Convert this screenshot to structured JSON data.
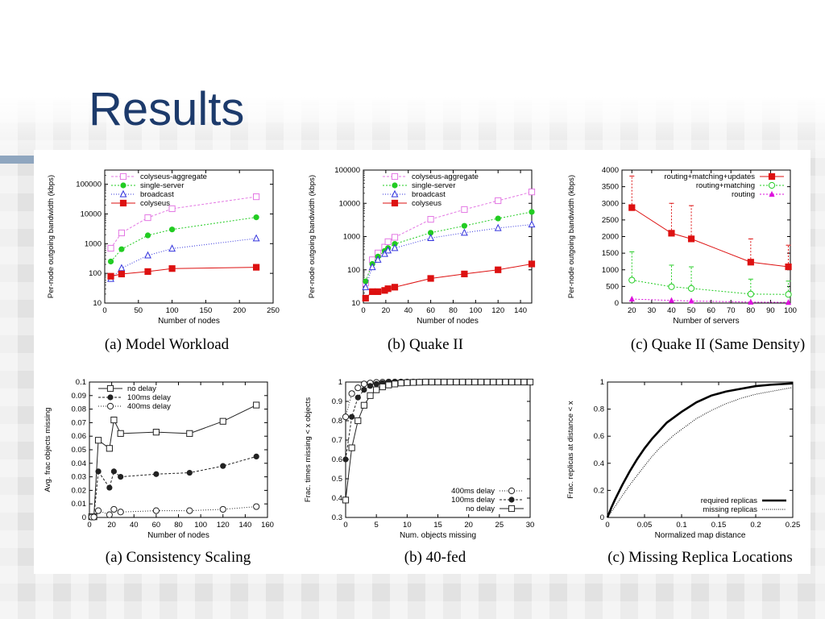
{
  "slide": {
    "title": "Results"
  },
  "chart_data": [
    {
      "id": "a_top",
      "type": "line",
      "caption": "(a) Model Workload",
      "xlabel": "Number of nodes",
      "ylabel": "Per-node outgoing bandwidth (kbps)",
      "yscale": "log",
      "xlim": [
        0,
        250
      ],
      "ylim": [
        10,
        300000
      ],
      "xticks": [
        0,
        50,
        100,
        150,
        200,
        250
      ],
      "yticks": [
        10,
        100,
        1000,
        10000,
        100000
      ],
      "ytick_labels": [
        "10",
        "100",
        "1000",
        "10000",
        "100000"
      ],
      "legend_position": "top-left",
      "series": [
        {
          "name": "colyseus-aggregate",
          "color": "#e377e3",
          "marker": "square-open",
          "dash": "3,2",
          "x": [
            9,
            25,
            64,
            100,
            225
          ],
          "y": [
            700,
            2300,
            7500,
            15000,
            38000
          ]
        },
        {
          "name": "single-server",
          "color": "#22cc22",
          "marker": "circle-filled",
          "dash": "2,2",
          "x": [
            9,
            25,
            64,
            100,
            225
          ],
          "y": [
            250,
            650,
            1900,
            3000,
            7700
          ]
        },
        {
          "name": "broadcast",
          "color": "#3333dd",
          "marker": "triangle-open",
          "dash": "1,2",
          "x": [
            9,
            25,
            64,
            100,
            225
          ],
          "y": [
            65,
            150,
            400,
            680,
            1500
          ]
        },
        {
          "name": "colyseus",
          "color": "#dd1111",
          "marker": "square-filled",
          "dash": "",
          "x": [
            9,
            25,
            64,
            100,
            225
          ],
          "y": [
            80,
            95,
            115,
            145,
            160
          ]
        }
      ]
    },
    {
      "id": "b_top",
      "type": "line",
      "caption": "(b) Quake II",
      "xlabel": "Number of nodes",
      "ylabel": "Per-node outgoing bandwidth (kbps)",
      "yscale": "log",
      "xlim": [
        0,
        150
      ],
      "ylim": [
        10,
        100000
      ],
      "xticks": [
        0,
        20,
        40,
        60,
        80,
        100,
        120,
        140
      ],
      "yticks": [
        10,
        100,
        1000,
        10000,
        100000
      ],
      "ytick_labels": [
        "10",
        "100",
        "1000",
        "10000",
        "100000"
      ],
      "legend_position": "top-left",
      "series": [
        {
          "name": "colyseus-aggregate",
          "color": "#e377e3",
          "marker": "square-open",
          "dash": "3,2",
          "x": [
            2,
            8,
            13,
            19,
            22,
            28,
            60,
            90,
            120,
            150
          ],
          "y": [
            40,
            200,
            320,
            480,
            700,
            950,
            3300,
            6500,
            12000,
            22000
          ]
        },
        {
          "name": "single-server",
          "color": "#22cc22",
          "marker": "circle-filled",
          "dash": "2,2",
          "x": [
            2,
            8,
            13,
            19,
            22,
            28,
            60,
            90,
            120,
            150
          ],
          "y": [
            45,
            150,
            250,
            370,
            450,
            600,
            1300,
            2100,
            3500,
            5500
          ]
        },
        {
          "name": "broadcast",
          "color": "#3333dd",
          "marker": "triangle-open",
          "dash": "1,2",
          "x": [
            2,
            8,
            13,
            19,
            22,
            28,
            60,
            90,
            120,
            150
          ],
          "y": [
            30,
            120,
            200,
            300,
            380,
            450,
            900,
            1300,
            1800,
            2300
          ]
        },
        {
          "name": "colyseus",
          "color": "#dd1111",
          "marker": "square-filled",
          "dash": "",
          "x": [
            2,
            8,
            13,
            19,
            22,
            28,
            60,
            90,
            120,
            150
          ],
          "y": [
            14,
            22,
            22,
            24,
            27,
            30,
            55,
            75,
            100,
            150
          ]
        }
      ]
    },
    {
      "id": "c_top",
      "type": "line",
      "caption": "(c) Quake II (Same Density)",
      "xlabel": "Number of servers",
      "ylabel": "Per-node outgoing bandwidth (kbps)",
      "yscale": "linear",
      "xlim": [
        15,
        100
      ],
      "ylim": [
        0,
        4000
      ],
      "xticks": [
        20,
        30,
        40,
        50,
        60,
        70,
        80,
        90,
        100
      ],
      "yticks": [
        0,
        500,
        1000,
        1500,
        2000,
        2500,
        3000,
        3500,
        4000
      ],
      "ytick_labels": [
        "0",
        "500",
        "1000",
        "1500",
        "2000",
        "2500",
        "3000",
        "3500",
        "4000"
      ],
      "legend_position": "top-right",
      "series": [
        {
          "name": "routing+matching+updates",
          "color": "#dd1111",
          "marker": "square-filled",
          "dash": "",
          "x": [
            20,
            40,
            50,
            80,
            99
          ],
          "y": [
            2870,
            2100,
            1930,
            1230,
            1090
          ],
          "err": [
            950,
            900,
            1000,
            700,
            650
          ]
        },
        {
          "name": "routing+matching",
          "color": "#22cc22",
          "marker": "circle-open",
          "dash": "2,2",
          "x": [
            20,
            40,
            50,
            80,
            99
          ],
          "y": [
            690,
            490,
            440,
            270,
            260
          ],
          "err": [
            850,
            650,
            650,
            450,
            400
          ]
        },
        {
          "name": "routing",
          "color": "#dd11dd",
          "marker": "triangle-filled",
          "dash": "2,2",
          "x": [
            20,
            40,
            50,
            80,
            99
          ],
          "y": [
            120,
            80,
            60,
            30,
            20
          ],
          "err": [
            0,
            0,
            0,
            0,
            0
          ]
        }
      ]
    },
    {
      "id": "a_bot",
      "type": "line",
      "caption": "(a) Consistency Scaling",
      "xlabel": "Number of nodes",
      "ylabel": "Avg. frac objects missing",
      "yscale": "linear",
      "xlim": [
        0,
        160
      ],
      "ylim": [
        0,
        0.1
      ],
      "xticks": [
        0,
        20,
        40,
        60,
        80,
        100,
        120,
        140,
        160
      ],
      "yticks": [
        0,
        0.01,
        0.02,
        0.03,
        0.04,
        0.05,
        0.06,
        0.07,
        0.08,
        0.09,
        0.1
      ],
      "ytick_labels": [
        "0",
        "0.01",
        "0.02",
        "0.03",
        "0.04",
        "0.05",
        "0.06",
        "0.07",
        "0.08",
        "0.09",
        "0.1"
      ],
      "legend_position": "top-left",
      "series": [
        {
          "name": "no delay",
          "color": "#222222",
          "marker": "square-open",
          "dash": "",
          "x": [
            2,
            4,
            8,
            18,
            22,
            28,
            60,
            90,
            120,
            150
          ],
          "y": [
            0.0005,
            0.0005,
            0.057,
            0.051,
            0.072,
            0.062,
            0.063,
            0.062,
            0.071,
            0.083
          ]
        },
        {
          "name": "100ms delay",
          "color": "#222222",
          "marker": "circle-filled",
          "dash": "3,2",
          "x": [
            2,
            4,
            8,
            18,
            22,
            28,
            60,
            90,
            120,
            150
          ],
          "y": [
            0.0005,
            0.0005,
            0.034,
            0.022,
            0.034,
            0.03,
            0.032,
            0.033,
            0.038,
            0.045
          ]
        },
        {
          "name": "400ms delay",
          "color": "#222222",
          "marker": "circle-open",
          "dash": "1,2",
          "x": [
            2,
            4,
            8,
            18,
            22,
            28,
            60,
            90,
            120,
            150
          ],
          "y": [
            0.0003,
            0.0003,
            0.005,
            0.002,
            0.006,
            0.004,
            0.005,
            0.005,
            0.006,
            0.008
          ]
        }
      ]
    },
    {
      "id": "b_bot",
      "type": "line",
      "caption": "(b) 40-fed",
      "xlabel": "Num. objects missing",
      "ylabel": "Frac. times missing < x objects",
      "yscale": "linear",
      "xlim": [
        0,
        30
      ],
      "ylim": [
        0.3,
        1
      ],
      "xticks": [
        0,
        5,
        10,
        15,
        20,
        25,
        30
      ],
      "yticks": [
        0.3,
        0.4,
        0.5,
        0.6,
        0.7,
        0.8,
        0.9,
        1
      ],
      "ytick_labels": [
        "0.3",
        "0.4",
        "0.5",
        "0.6",
        "0.7",
        "0.8",
        "0.9",
        "1"
      ],
      "legend_position": "bottom-right",
      "series": [
        {
          "name": "400ms delay",
          "color": "#222222",
          "marker": "circle-open",
          "dash": "1,2",
          "x": [
            0,
            1,
            2,
            3,
            4,
            5,
            6,
            7,
            8,
            9,
            10,
            11,
            12,
            13,
            14,
            15,
            16,
            17,
            18,
            19,
            20,
            21,
            22,
            23,
            24,
            25,
            26,
            27
          ],
          "y": [
            0.82,
            0.94,
            0.97,
            0.99,
            0.995,
            0.998,
            0.999,
            1,
            1,
            1,
            1,
            1,
            1,
            1,
            1,
            1,
            1,
            1,
            1,
            1,
            1,
            1,
            1,
            1,
            1,
            1,
            1,
            1
          ]
        },
        {
          "name": "100ms delay",
          "color": "#222222",
          "marker": "circle-filled",
          "dash": "3,2",
          "x": [
            0,
            1,
            2,
            3,
            4,
            5,
            6,
            7,
            8,
            9,
            10,
            11,
            12,
            13,
            14,
            15,
            16,
            17,
            18,
            19,
            20,
            21,
            22,
            23,
            24,
            25,
            26,
            27
          ],
          "y": [
            0.6,
            0.82,
            0.92,
            0.96,
            0.98,
            0.99,
            0.995,
            0.998,
            1,
            1,
            1,
            1,
            1,
            1,
            1,
            1,
            1,
            1,
            1,
            1,
            1,
            1,
            1,
            1,
            1,
            1,
            1,
            1
          ]
        },
        {
          "name": "no delay",
          "color": "#222222",
          "marker": "square-open",
          "dash": "",
          "x": [
            0,
            1,
            2,
            3,
            4,
            5,
            6,
            7,
            8,
            9,
            10,
            11,
            12,
            13,
            14,
            15,
            16,
            17,
            18,
            19,
            20,
            21,
            22,
            23,
            24,
            25,
            26,
            27,
            28,
            29,
            30
          ],
          "y": [
            0.39,
            0.66,
            0.8,
            0.88,
            0.93,
            0.96,
            0.975,
            0.985,
            0.99,
            0.995,
            0.997,
            0.998,
            0.999,
            1,
            1,
            1,
            1,
            1,
            1,
            1,
            1,
            1,
            1,
            1,
            1,
            1,
            1,
            1,
            1,
            1,
            1
          ]
        }
      ]
    },
    {
      "id": "c_bot",
      "type": "line",
      "caption": "(c) Missing Replica Locations",
      "xlabel": "Normalized map distance",
      "ylabel": "Frac. replicas at distance < x",
      "yscale": "linear",
      "xlim": [
        0,
        0.25
      ],
      "ylim": [
        0,
        1
      ],
      "xticks": [
        0,
        0.05,
        0.1,
        0.15,
        0.2,
        0.25
      ],
      "xtick_labels": [
        "0",
        "0.05",
        "0.1",
        "0.15",
        "0.2",
        "0.25"
      ],
      "yticks": [
        0,
        0.2,
        0.4,
        0.6,
        0.8,
        1
      ],
      "ytick_labels": [
        "0",
        "0.2",
        "0.4",
        "0.6",
        "0.8",
        "1"
      ],
      "legend_position": "bottom-right",
      "series": [
        {
          "name": "required replicas",
          "color": "#000000",
          "marker": "none",
          "dash": "",
          "width": 2.6,
          "x": [
            0,
            0.005,
            0.01,
            0.02,
            0.03,
            0.04,
            0.05,
            0.06,
            0.07,
            0.08,
            0.09,
            0.1,
            0.12,
            0.14,
            0.16,
            0.18,
            0.2,
            0.22,
            0.25
          ],
          "y": [
            0,
            0.07,
            0.13,
            0.24,
            0.34,
            0.43,
            0.51,
            0.58,
            0.64,
            0.7,
            0.74,
            0.78,
            0.85,
            0.9,
            0.93,
            0.95,
            0.97,
            0.98,
            0.99
          ]
        },
        {
          "name": "missing replicas",
          "color": "#000000",
          "marker": "none",
          "dash": "1,1.5",
          "width": 1,
          "x": [
            0,
            0.005,
            0.01,
            0.02,
            0.03,
            0.04,
            0.05,
            0.06,
            0.07,
            0.08,
            0.09,
            0.1,
            0.12,
            0.14,
            0.16,
            0.18,
            0.2,
            0.22,
            0.25
          ],
          "y": [
            0,
            0.04,
            0.08,
            0.16,
            0.24,
            0.31,
            0.38,
            0.45,
            0.51,
            0.56,
            0.61,
            0.65,
            0.73,
            0.79,
            0.84,
            0.88,
            0.91,
            0.93,
            0.96
          ]
        }
      ]
    }
  ]
}
